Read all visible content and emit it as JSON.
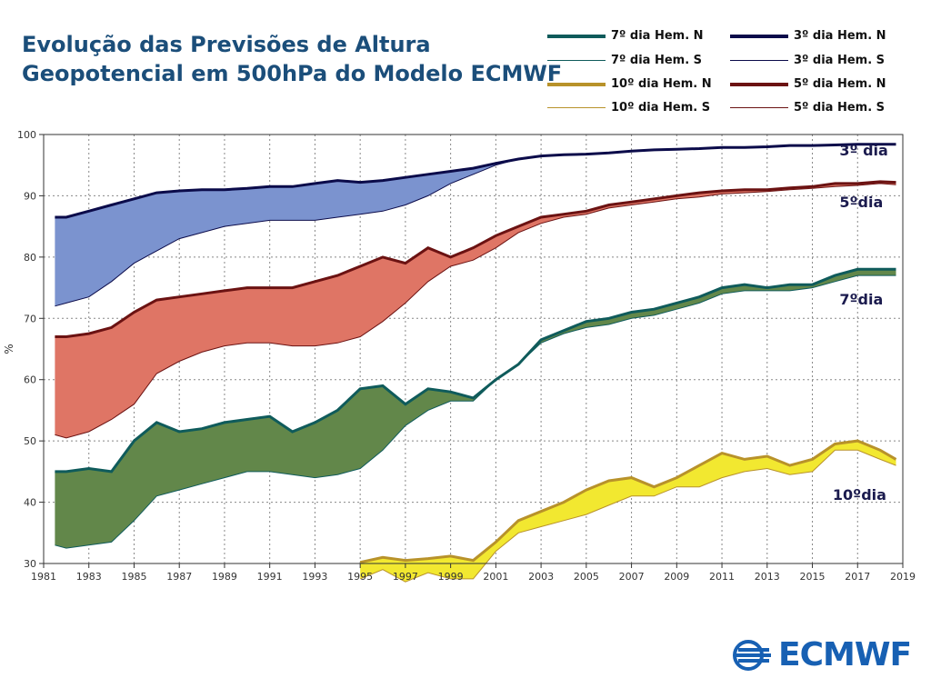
{
  "title": {
    "line1": "Evolução das Previsões de Altura",
    "line2": "Geopotencial em 500hPa do Modelo ECMWF"
  },
  "logo": {
    "text": "ECMWF",
    "icon": "ecmwf-logo-icon"
  },
  "legend": [
    {
      "label": "7º dia Hem. N",
      "color": "#0f5b5b",
      "weight": "thick"
    },
    {
      "label": "7º dia Hem. S",
      "color": "#0f5b5b",
      "weight": "thin"
    },
    {
      "label": "10º dia Hem. N",
      "color": "#b8922a",
      "weight": "thick"
    },
    {
      "label": "10º dia Hem. S",
      "color": "#b8922a",
      "weight": "thin"
    },
    {
      "label": "3º dia Hem. N",
      "color": "#0b0b4a",
      "weight": "thick"
    },
    {
      "label": "3º dia Hem. S",
      "color": "#0b0b4a",
      "weight": "thin"
    },
    {
      "label": "5º dia Hem. N",
      "color": "#6b1212",
      "weight": "thick"
    },
    {
      "label": "5º dia Hem. S",
      "color": "#6b1212",
      "weight": "thin"
    }
  ],
  "chart_data": {
    "type": "area",
    "ylabel": "%",
    "xlabel": "",
    "ylim": [
      30,
      100
    ],
    "xlim": [
      1981,
      2019
    ],
    "grid": true,
    "x_ticks": [
      "1981",
      "1983",
      "1985",
      "1987",
      "1989",
      "1991",
      "1993",
      "1995",
      "1997",
      "1999",
      "2001",
      "2003",
      "2005",
      "2007",
      "2009",
      "2011",
      "2013",
      "2015",
      "2017",
      "2019"
    ],
    "y_ticks": [
      "30",
      "40",
      "50",
      "60",
      "70",
      "80",
      "90",
      "100"
    ],
    "x": [
      1981.5,
      1982,
      1983,
      1984,
      1985,
      1986,
      1987,
      1988,
      1989,
      1990,
      1991,
      1992,
      1993,
      1994,
      1995,
      1996,
      1997,
      1998,
      1999,
      2000,
      2001,
      2002,
      2003,
      2004,
      2005,
      2006,
      2007,
      2008,
      2009,
      2010,
      2011,
      2012,
      2013,
      2014,
      2015,
      2016,
      2017,
      2018,
      2018.7
    ],
    "series": [
      {
        "name": "3º dia",
        "color_nh": "#0b0b4a",
        "fill": "#7b93cf",
        "nh": [
          86.5,
          86.5,
          87.5,
          88.5,
          89.5,
          90.5,
          90.8,
          91,
          91,
          91.2,
          91.5,
          91.5,
          92,
          92.5,
          92.2,
          92.5,
          93,
          93.5,
          94,
          94.5,
          95.3,
          96,
          96.5,
          96.7,
          96.8,
          97,
          97.3,
          97.5,
          97.6,
          97.7,
          97.9,
          97.9,
          98,
          98.2,
          98.2,
          98.3,
          98.4,
          98.4,
          98.4
        ],
        "sh": [
          72,
          72.5,
          73.5,
          76,
          79,
          81,
          83,
          84,
          85,
          85.5,
          86,
          86,
          86,
          86.5,
          87,
          87.5,
          88.5,
          90,
          92,
          93.5,
          95,
          96,
          96.5,
          96.7,
          96.8,
          97,
          97.2,
          97.4,
          97.5,
          97.6,
          97.8,
          97.8,
          97.9,
          98.1,
          98.1,
          98.2,
          98.3,
          98.3,
          98.3
        ]
      },
      {
        "name": "5º dia",
        "color_nh": "#6b1212",
        "fill": "#df7565",
        "nh": [
          67,
          67,
          67.5,
          68.5,
          71,
          73,
          73.5,
          74,
          74.5,
          75,
          75,
          75,
          76,
          77,
          78.5,
          80,
          79,
          81.5,
          80,
          81.5,
          83.5,
          85,
          86.5,
          87,
          87.5,
          88.5,
          89,
          89.5,
          90,
          90.5,
          90.8,
          91,
          91,
          91.3,
          91.5,
          92,
          92,
          92.3,
          92.2
        ],
        "sh": [
          51,
          50.5,
          51.5,
          53.5,
          56,
          61,
          63,
          64.5,
          65.5,
          66,
          66,
          65.5,
          65.5,
          66,
          67,
          69.5,
          72.5,
          76,
          78.5,
          79.5,
          81.5,
          84,
          85.5,
          86.5,
          87,
          88,
          88.5,
          89,
          89.5,
          89.8,
          90.3,
          90.5,
          90.7,
          91,
          91.2,
          91.5,
          91.7,
          92,
          91.8
        ]
      },
      {
        "name": "7º dia",
        "color_nh": "#0f5b5b",
        "fill": "#62874a",
        "nh": [
          45,
          45,
          45.5,
          45,
          50,
          53,
          51.5,
          52,
          53,
          53.5,
          54,
          51.5,
          53,
          55,
          58.5,
          59,
          56,
          58.5,
          58,
          57,
          60,
          62.5,
          66.5,
          68,
          69.5,
          70,
          71,
          71.5,
          72.5,
          73.5,
          75,
          75.5,
          75,
          75.5,
          75.5,
          77,
          78,
          78,
          78
        ],
        "sh": [
          33,
          32.5,
          33,
          33.5,
          37,
          41,
          42,
          43,
          44,
          45,
          45,
          44.5,
          44,
          44.5,
          45.5,
          48.5,
          52.5,
          55,
          56.5,
          56.5,
          60,
          62.5,
          66,
          67.5,
          68.5,
          69,
          70,
          70.5,
          71.5,
          72.5,
          74,
          74.5,
          74.5,
          74.5,
          75,
          76,
          77,
          77,
          77
        ]
      },
      {
        "name": "10º dia",
        "color_nh": "#b8922a",
        "fill": "#f2e830",
        "nh": [
          null,
          null,
          null,
          null,
          null,
          null,
          null,
          null,
          null,
          null,
          null,
          null,
          null,
          null,
          30.2,
          31,
          30.5,
          30.8,
          31.2,
          30.5,
          33.5,
          37,
          38.5,
          40,
          42,
          43.5,
          44,
          42.5,
          44,
          46,
          48,
          47,
          47.5,
          46,
          47,
          49.5,
          50,
          48.5,
          47
        ],
        "sh": [
          null,
          null,
          null,
          null,
          null,
          null,
          null,
          null,
          null,
          null,
          null,
          null,
          null,
          null,
          27.5,
          29,
          27,
          28.5,
          27.5,
          27.5,
          32,
          35,
          36,
          37,
          38,
          39.5,
          41,
          41,
          42.5,
          42.5,
          44,
          45,
          45.5,
          44.5,
          45,
          48.5,
          48.5,
          47,
          46
        ]
      }
    ],
    "annotations": [
      "3º dia",
      "5ºdia",
      "7ºdia",
      "10ºdia"
    ]
  }
}
